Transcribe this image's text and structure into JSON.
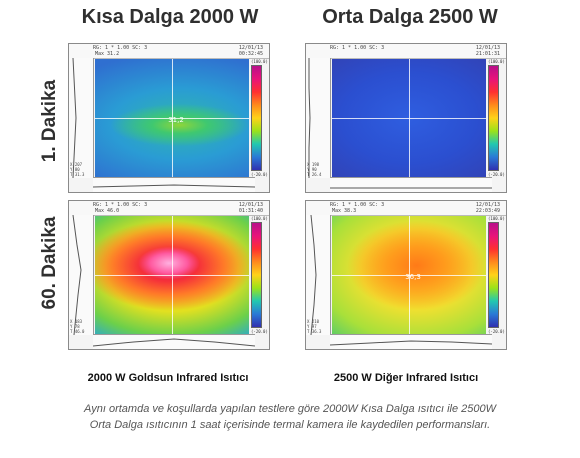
{
  "columns": {
    "left_title": "Kısa Dalga 2000 W",
    "right_title": "Orta Dalga 2500 W"
  },
  "rows": {
    "row1_label": "1. Dakika",
    "row2_label": "60. Dakika"
  },
  "panels": [
    {
      "id": "kisa-1",
      "camera_line": "RG: 1  * 1.00  SC: 3",
      "max_line": "Max 31.2",
      "date": "12/01/13",
      "time": "00:32:45",
      "center_reading": "31,2",
      "scale_max": "(100.0)",
      "scale_min": "(-20.0)",
      "side_readout": [
        "X 207",
        "Y 80",
        "T 31.3"
      ]
    },
    {
      "id": "orta-1",
      "camera_line": "RG: 1  * 1.00  SC: 3",
      "max_line": "",
      "date": "12/01/13",
      "time": "21:01:31",
      "center_reading": "",
      "scale_max": "(100.0)",
      "scale_min": "(-20.0)",
      "side_readout": [
        "X 198",
        "Y 90",
        "T 26.4"
      ]
    },
    {
      "id": "kisa-60",
      "camera_line": "RG: 1  * 1.00  SC: 3",
      "max_line": "Max 46.0",
      "date": "12/01/13",
      "time": "01:31:40",
      "center_reading": "",
      "scale_max": "(100.0)",
      "scale_min": "(-20.0)",
      "side_readout": [
        "X 183",
        "Y 78",
        "T 46.0"
      ]
    },
    {
      "id": "orta-60",
      "camera_line": "RG: 1  * 1.00  SC: 3",
      "max_line": "Max 38.3",
      "date": "12/01/13",
      "time": "22:03:49",
      "center_reading": "36,3",
      "scale_max": "(100.0)",
      "scale_min": "(-20.0)",
      "side_readout": [
        "X 210",
        "Y 97",
        "T 36.3"
      ]
    }
  ],
  "captions": {
    "left": "2000 W Goldsun Infrared Isıtıcı",
    "right": "2500 W Diğer Infrared Isıtıcı"
  },
  "footnote": {
    "line1": "Aynı ortamda ve koşullarda yapılan testlere göre 2000W Kısa Dalga ısıtıcı ile 2500W",
    "line2": "Orta Dalga ısıtıcının 1 saat içerisinde termal kamera ile kaydedilen performansları."
  }
}
